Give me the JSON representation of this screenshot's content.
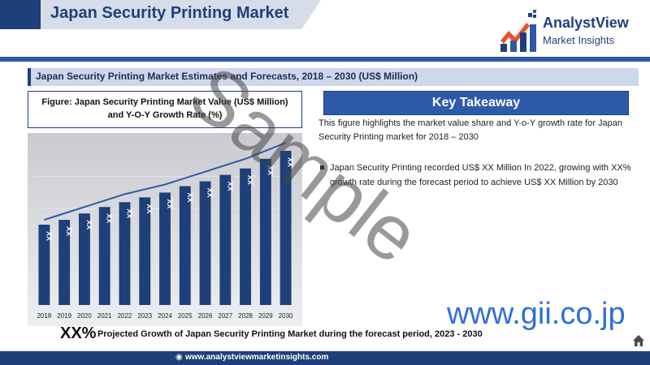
{
  "header": {
    "title": "Japan Security Printing Market",
    "logo_brand": "AnalystView",
    "logo_sub": "Market Insights"
  },
  "subtitle": "Japan Security Printing Market Estimates and Forecasts, 2018 – 2030 (US$ Million)",
  "figure": {
    "caption_line1": "Figure: Japan Security Printing Market Value (US$ Million)",
    "caption_line2": "and Y-O-Y Growth Rate (%)"
  },
  "key_takeaway": {
    "heading": "Key Takeaway",
    "text": "This figure highlights the market value share and Y-o-Y growth rate for Japan Security Printing market for 2018 – 2030",
    "bullet": "Japan Security Printing recorded US$ XX Million In 2022, growing with XX% growth rate during the forecast period to achieve US$ XX Million by 2030"
  },
  "growth": {
    "value": "XX%",
    "text": "Projected Growth of Japan Security Printing Market during the forecast period, 2023 - 2030"
  },
  "footer": {
    "url": "www.analystviewmarketinsights.com"
  },
  "watermarks": {
    "sample": "Sample",
    "gii": "www.gii.co.jp"
  },
  "colors": {
    "primary": "#1f3f7a",
    "accent": "#2e5aa8",
    "bar": "#1f3f7a",
    "line": "#2e5aa8"
  },
  "chart_data": {
    "type": "bar",
    "categories": [
      "2018",
      "2019",
      "2020",
      "2021",
      "2022",
      "2023",
      "2024",
      "2025",
      "2026",
      "2027",
      "2028",
      "2029",
      "2030"
    ],
    "values": [
      50,
      53,
      57,
      61,
      64,
      67,
      70,
      74,
      77,
      81,
      85,
      91,
      96
    ],
    "data_labels": [
      "XX",
      "XX",
      "XX",
      "XX",
      "XX",
      "XX",
      "XX",
      "XX",
      "XX",
      "XX",
      "XX",
      "XX",
      "XX"
    ],
    "growth_line": [
      52,
      56,
      60,
      64,
      68,
      71,
      74,
      78,
      82,
      86,
      90,
      95,
      100
    ],
    "ylim": [
      0,
      100
    ],
    "grid": true
  }
}
